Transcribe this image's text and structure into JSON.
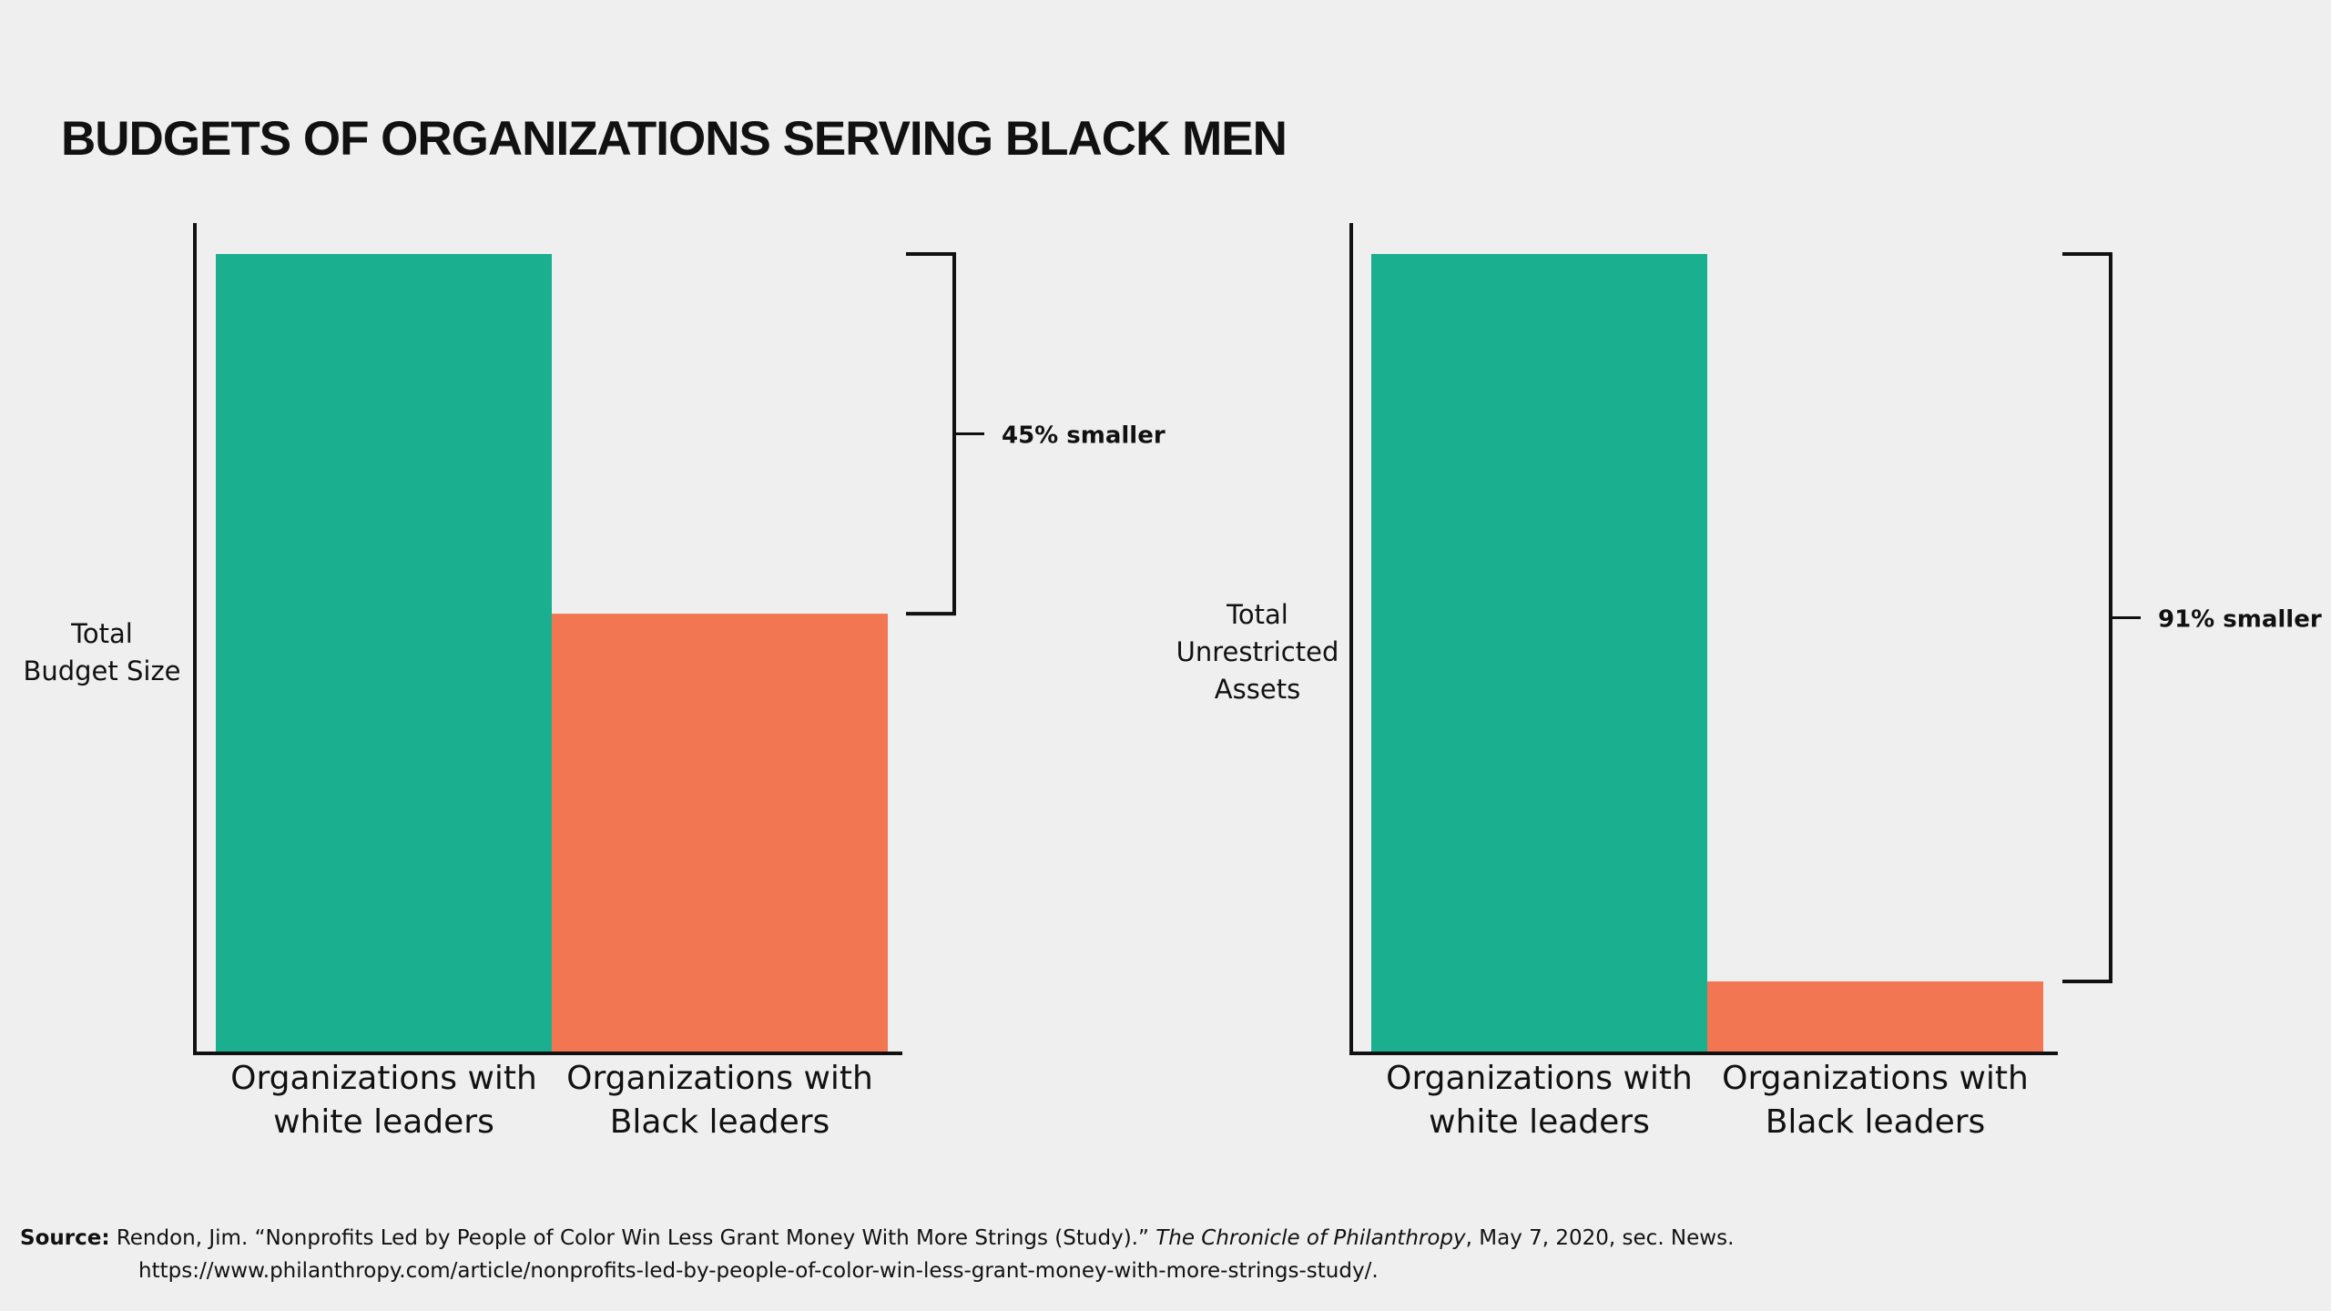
{
  "title": "BUDGETS OF ORGANIZATIONS SERVING BLACK MEN",
  "colors": {
    "white_leaders": "#1aaf8f",
    "black_leaders": "#f27652",
    "axis": "#111111",
    "background": "#efefef"
  },
  "chart_data": [
    {
      "type": "bar",
      "ylabel": "Total Budget Size",
      "ylabel_lines": [
        "Total",
        "Budget Size"
      ],
      "categories": [
        "Organizations with white leaders",
        "Organizations with Black leaders"
      ],
      "category_lines": [
        [
          "Organizations with",
          "white leaders"
        ],
        [
          "Organizations with",
          "Black leaders"
        ]
      ],
      "values": [
        100,
        55
      ],
      "annotation": "45% smaller",
      "grid": false
    },
    {
      "type": "bar",
      "ylabel": "Total Unrestricted Assets",
      "ylabel_lines": [
        "Total",
        "Unrestricted",
        "Assets"
      ],
      "categories": [
        "Organizations with white leaders",
        "Organizations with Black leaders"
      ],
      "category_lines": [
        [
          "Organizations with",
          "white leaders"
        ],
        [
          "Organizations with",
          "Black leaders"
        ]
      ],
      "values": [
        100,
        9
      ],
      "annotation": "91% smaller",
      "grid": false
    }
  ],
  "source": {
    "label": "Source:",
    "text_before": " Rendon, Jim. “Nonprofits Led by People of Color Win Less Grant Money With More Strings (Study).” ",
    "publication": "The Chronicle of Philanthropy",
    "text_after": ", May 7, 2020, sec. News.",
    "url": "https://www.philanthropy.com/article/nonprofits-led-by-people-of-color-win-less-grant-money-with-more-strings-study/."
  }
}
